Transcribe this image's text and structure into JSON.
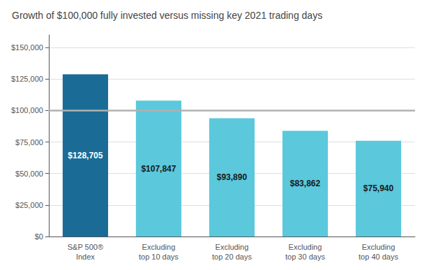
{
  "chart_data": {
    "type": "bar",
    "title": "Growth of $100,000 fully invested versus missing key 2021 trading days",
    "categories": [
      "S&P 500®\nIndex",
      "Excluding\ntop 10 days",
      "Excluding\ntop 20 days",
      "Excluding\ntop 30 days",
      "Excluding\ntop 40 days"
    ],
    "values": [
      128705,
      107847,
      93890,
      83862,
      75940
    ],
    "value_labels": [
      "$128,705",
      "$107,847",
      "$93,890",
      "$83,862",
      "$75,940"
    ],
    "data_labels": true,
    "colors": [
      "#1a6b96",
      "#5bc8dc",
      "#5bc8dc",
      "#5bc8dc",
      "#5bc8dc"
    ],
    "reference_line": 100000,
    "ylim": [
      0,
      160000
    ],
    "yticks": [
      {
        "value": 0,
        "label": "$0"
      },
      {
        "value": 25000,
        "label": "$25,000"
      },
      {
        "value": 50000,
        "label": "$50,000"
      },
      {
        "value": 75000,
        "label": "$75,000"
      },
      {
        "value": 100000,
        "label": "$100,000"
      },
      {
        "value": 125000,
        "label": "$125,000"
      },
      {
        "value": 150000,
        "label": "$150,000"
      }
    ],
    "grid": true
  }
}
